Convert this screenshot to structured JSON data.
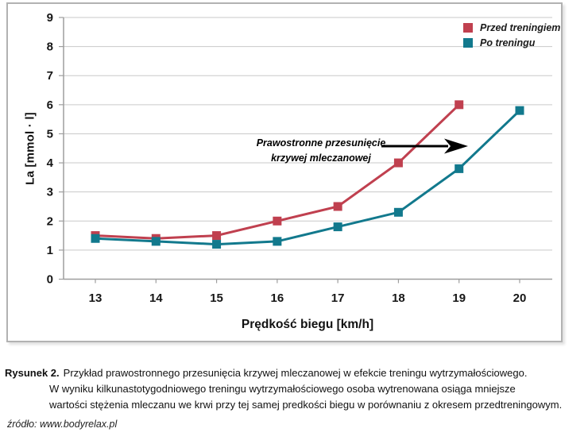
{
  "chart_data": {
    "type": "line",
    "title": "",
    "xlabel": "Prędkość biegu [km/h]",
    "ylabel": "La [mmol · l]",
    "x": [
      13,
      14,
      15,
      16,
      17,
      18,
      19,
      20
    ],
    "ylim": [
      0,
      9
    ],
    "yticks": [
      0,
      1,
      2,
      3,
      4,
      5,
      6,
      7,
      8,
      9
    ],
    "grid": "horizontal",
    "legend_position": "top-right",
    "axis_color": "#9e9e9e",
    "grid_color": "#c9c9c9",
    "series": [
      {
        "name": "Przed treningiem",
        "color": "#c0404f",
        "marker": "square",
        "values": [
          1.5,
          1.4,
          1.5,
          2.0,
          2.5,
          4.0,
          6.0,
          null
        ]
      },
      {
        "name": "Po treningu",
        "color": "#12798d",
        "marker": "square",
        "values": [
          1.4,
          1.3,
          1.2,
          1.3,
          1.8,
          2.3,
          3.8,
          5.8
        ]
      }
    ],
    "annotation": {
      "lines": [
        "Prawostronne przesunięcie",
        "krzywej mleczanowej"
      ],
      "arrow_direction": "right",
      "arrow_color": "#000000"
    }
  },
  "caption": {
    "label": "Rysunek 2.",
    "lines": [
      "Przykład prawostronnego przesunięcia krzywej mleczanowej w efekcie treningu wytrzymałościowego.",
      "W wyniku kilkunastotygodniowego treningu wytrzymałościowego osoba wytrenowana osiąga mniejsze",
      "wartości stężenia mleczanu we krwi przy tej samej predkości biegu w porównaniu z okresem przedtreningowym."
    ],
    "source": "źródło: www.bodyrelax.pl"
  }
}
